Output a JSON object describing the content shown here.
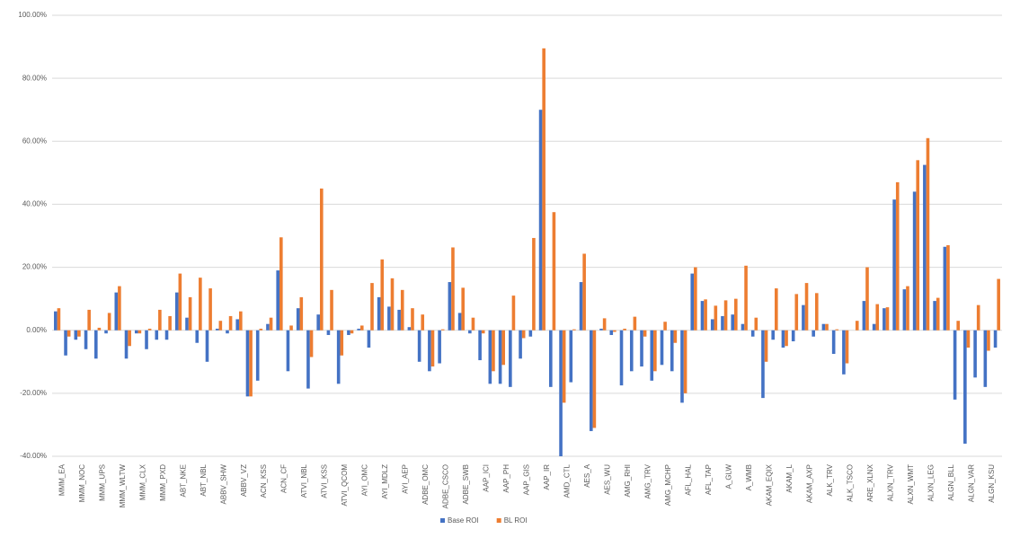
{
  "chart_data": {
    "type": "bar",
    "categories": [
      "MMM_EA",
      null,
      "MMM_NOC",
      null,
      "MMM_UPS",
      null,
      "MMM_WLTW",
      null,
      "MMM_CLX",
      null,
      "MMM_PXD",
      null,
      "ABT_NKE",
      null,
      "ABT_NBL",
      null,
      "ABBV_SHW",
      null,
      "ABBV_VZ",
      null,
      "ACN_KSS",
      null,
      "ACN_CF",
      null,
      "ATVI_NBL",
      null,
      "ATVI_KSS",
      null,
      "ATVI_QCOM",
      null,
      "AYI_OMC",
      null,
      "AYI_MDLZ",
      null,
      "AYI_AEP",
      null,
      "ADBE_OMC",
      null,
      "ADBE_CSCO",
      null,
      "ADBE_SWB",
      null,
      "AAP_ICI",
      null,
      "AAP_PH",
      null,
      "AAP_GIS",
      null,
      "AAP_IR",
      null,
      "AMD_CTL",
      null,
      "AES_A",
      null,
      "AES_WU",
      null,
      "AMG_RHI",
      null,
      "AMG_TRV",
      null,
      "AMG_MCHP",
      null,
      "AFL_HAL",
      null,
      "AFL_TAP",
      null,
      "A_GLW",
      null,
      "A_WMB",
      null,
      "AKAM_EQIX",
      null,
      "AKAM_L",
      null,
      "AKAM_AXP",
      null,
      "ALK_TRV",
      null,
      "ALK_TSCO",
      null,
      "ARE_XLNX",
      null,
      "ALXN_TRV",
      null,
      "ALXN_WMT",
      null,
      "ALXN_LEG",
      null,
      "ALGN_BLL",
      null,
      "ALGN_VAR",
      null,
      "ALGN_KSU",
      null
    ],
    "series": [
      {
        "name": "Base ROI",
        "color": "#4472c4",
        "values": [
          6,
          -8,
          -3,
          -6,
          -9,
          -1,
          12,
          -9,
          -1,
          -6,
          -3,
          -3,
          12,
          4,
          -4,
          -10,
          0.5,
          -1,
          3.5,
          -21,
          -16,
          2,
          19,
          -13,
          7,
          -18.5,
          5,
          -1.5,
          -17,
          -1.5,
          0.5,
          -5.5,
          10.5,
          7.5,
          6.5,
          1,
          -10,
          -13,
          -10.5,
          15.3,
          5.5,
          -1,
          -9.5,
          -17,
          -17,
          -18,
          -9,
          -2,
          70,
          -18,
          -40,
          -16.5,
          15.3,
          -32,
          0.5,
          -1.5,
          -17.5,
          -13,
          -11.5,
          -16,
          -11,
          -13,
          -23,
          18,
          9.3,
          3.5,
          4.5,
          5,
          2,
          -2,
          -21.5,
          -3,
          -5.5,
          -3.5,
          8,
          -2,
          2,
          -7.5,
          -14,
          0,
          9.3,
          2,
          7,
          41.5,
          13,
          44,
          52.5,
          9.3,
          26.5,
          -22,
          -36,
          -15,
          -18,
          -5.5
        ]
      },
      {
        "name": "BL ROI",
        "color": "#ed7d31",
        "values": [
          7,
          -2,
          -2,
          6.5,
          0.8,
          5.5,
          14,
          -5,
          -1,
          0.5,
          6.5,
          4.5,
          18,
          10.5,
          16.7,
          13.3,
          3,
          4.5,
          6,
          -21,
          0.5,
          4,
          29.5,
          1.5,
          10.5,
          -8.5,
          45,
          12.8,
          -8,
          -1,
          1.5,
          15,
          22.5,
          16.5,
          12.8,
          7,
          5,
          -11.5,
          0.3,
          26.3,
          13.5,
          4,
          -1,
          -13,
          -11,
          11,
          -2.5,
          29.3,
          89.5,
          37.5,
          -23,
          0.3,
          24.3,
          -31,
          3.8,
          -0.5,
          0.5,
          4.3,
          -2,
          -13,
          2.7,
          -4,
          -20,
          20,
          9.8,
          7.8,
          9.5,
          10,
          20.5,
          4,
          -10,
          13.3,
          -5,
          11.5,
          15,
          11.8,
          2,
          0.3,
          -10.5,
          3,
          20,
          8.3,
          7.3,
          47,
          14,
          54,
          61,
          10.3,
          27,
          3,
          -5.5,
          8,
          -6.5,
          16.3
        ]
      }
    ],
    "ylim": [
      -40,
      100
    ],
    "yticks": [
      {
        "value": -40,
        "label": "-40.00%"
      },
      {
        "value": -20,
        "label": "-20.00%"
      },
      {
        "value": 0,
        "label": "0.00%"
      },
      {
        "value": 20,
        "label": "20.00%"
      },
      {
        "value": 40,
        "label": "40.00%"
      },
      {
        "value": 60,
        "label": "60.00%"
      },
      {
        "value": 80,
        "label": "80.00%"
      },
      {
        "value": 100,
        "label": "100.00%"
      }
    ],
    "grid": true,
    "legend": "bottom"
  }
}
